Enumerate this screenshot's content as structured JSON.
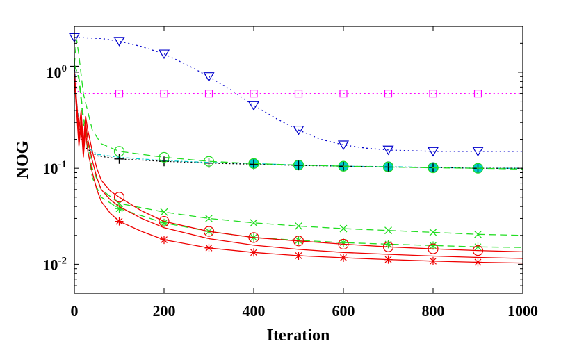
{
  "chart_data": {
    "type": "line",
    "title": "",
    "xlabel": "Iteration",
    "ylabel": "NOG",
    "xlim": [
      0,
      1000
    ],
    "ylim": [
      0.005,
      3
    ],
    "yscale": "log",
    "grid": false,
    "legend": "none",
    "xticks": [
      "0",
      "200",
      "400",
      "600",
      "800",
      "1000"
    ],
    "yticks": [
      {
        "value": 1,
        "base": "10",
        "exp": "0"
      },
      {
        "value": 0.1,
        "base": "10",
        "exp": "-1"
      },
      {
        "value": 0.01,
        "base": "10",
        "exp": "-2"
      }
    ],
    "series": [
      {
        "color": "#0000cc",
        "dash": "2,4",
        "marker": "triangle-down",
        "x": [
          0,
          60,
          100,
          150,
          200,
          250,
          300,
          350,
          400,
          450,
          500,
          550,
          600,
          650,
          700,
          750,
          800,
          850,
          900,
          950,
          1000
        ],
        "y": [
          2.3,
          2.25,
          2.1,
          1.85,
          1.55,
          1.2,
          0.9,
          0.65,
          0.45,
          0.33,
          0.25,
          0.2,
          0.175,
          0.162,
          0.155,
          0.152,
          0.15,
          0.15,
          0.15,
          0.15,
          0.15
        ],
        "marker_x": [
          0,
          100,
          200,
          300,
          400,
          500,
          600,
          700,
          800,
          900
        ]
      },
      {
        "color": "#ff00ff",
        "dash": "2,4",
        "marker": "square",
        "x": [
          0,
          5,
          10,
          100,
          1000
        ],
        "y": [
          1.15,
          0.7,
          0.6,
          0.6,
          0.6
        ],
        "marker_x": [
          100,
          200,
          300,
          400,
          500,
          600,
          700,
          800,
          900
        ]
      },
      {
        "color": "#00cccc",
        "dash": "6,3,2,3",
        "marker": "circle-filled",
        "x": [
          0,
          5,
          10,
          20,
          50,
          100,
          200,
          300,
          400,
          500,
          600,
          700,
          800,
          900,
          1000
        ],
        "y": [
          1.2,
          0.5,
          0.3,
          0.18,
          0.14,
          0.13,
          0.12,
          0.115,
          0.112,
          0.108,
          0.105,
          0.104,
          0.102,
          0.1,
          0.1
        ],
        "marker_x": [
          400,
          500,
          600,
          700,
          800,
          900
        ]
      },
      {
        "color": "#000000",
        "dash": "2,3",
        "marker": "plus",
        "x": [
          0,
          5,
          10,
          20,
          50,
          100,
          200,
          300,
          400,
          500,
          600,
          700,
          800,
          900,
          1000
        ],
        "y": [
          1.15,
          0.45,
          0.28,
          0.17,
          0.135,
          0.125,
          0.118,
          0.113,
          0.11,
          0.107,
          0.105,
          0.103,
          0.102,
          0.1,
          0.1
        ],
        "marker_x": [
          0,
          100,
          200,
          300,
          400,
          500,
          600,
          700,
          800,
          900
        ]
      },
      {
        "color": "#22dd22",
        "dash": "10,6",
        "marker": "circle",
        "x": [
          0,
          5,
          10,
          20,
          40,
          60,
          100,
          200,
          300,
          400,
          500,
          600,
          700,
          800,
          900,
          1000
        ],
        "y": [
          1.2,
          2.2,
          1.5,
          0.6,
          0.25,
          0.18,
          0.15,
          0.13,
          0.118,
          0.112,
          0.108,
          0.105,
          0.103,
          0.101,
          0.1,
          0.098
        ],
        "marker_x": [
          100,
          200,
          300,
          400,
          500,
          600,
          700,
          800,
          900
        ]
      },
      {
        "color": "#22dd22",
        "dash": "10,6",
        "marker": "x",
        "x": [
          0,
          10,
          20,
          40,
          60,
          100,
          200,
          300,
          400,
          500,
          600,
          700,
          800,
          900,
          1000
        ],
        "y": [
          1.2,
          0.9,
          0.35,
          0.1,
          0.06,
          0.043,
          0.035,
          0.03,
          0.027,
          0.025,
          0.0235,
          0.0225,
          0.0215,
          0.0205,
          0.02
        ],
        "marker_x": [
          100,
          200,
          300,
          400,
          500,
          600,
          700,
          800,
          900
        ]
      },
      {
        "color": "#22dd22",
        "dash": "10,6",
        "marker": "asterisk",
        "x": [
          0,
          10,
          20,
          40,
          60,
          100,
          200,
          300,
          400,
          500,
          600,
          700,
          800,
          900,
          1000
        ],
        "y": [
          1.2,
          0.85,
          0.3,
          0.08,
          0.05,
          0.038,
          0.027,
          0.022,
          0.019,
          0.0178,
          0.0168,
          0.0162,
          0.0157,
          0.0152,
          0.015
        ],
        "marker_x": [
          100,
          200,
          300,
          400,
          500,
          600,
          700,
          800,
          900
        ]
      },
      {
        "color": "#ee0000",
        "dash": "",
        "marker": "circle",
        "x": [
          0,
          10,
          15,
          20,
          25,
          30,
          40,
          50,
          60,
          80,
          100,
          150,
          200,
          300,
          400,
          500,
          600,
          700,
          800,
          900,
          1000
        ],
        "y": [
          1.0,
          0.25,
          0.4,
          0.18,
          0.35,
          0.25,
          0.15,
          0.1,
          0.075,
          0.058,
          0.05,
          0.036,
          0.028,
          0.022,
          0.019,
          0.0175,
          0.0162,
          0.0152,
          0.0145,
          0.0139,
          0.0135
        ],
        "marker_x": [
          100,
          200,
          300,
          400,
          500,
          600,
          700,
          800,
          900
        ]
      },
      {
        "color": "#ee0000",
        "dash": "",
        "marker": "none",
        "x": [
          0,
          10,
          15,
          20,
          25,
          30,
          40,
          50,
          60,
          80,
          100,
          150,
          200,
          300,
          400,
          500,
          600,
          700,
          800,
          900,
          1000
        ],
        "y": [
          0.9,
          0.2,
          0.32,
          0.15,
          0.3,
          0.2,
          0.12,
          0.08,
          0.06,
          0.047,
          0.04,
          0.03,
          0.024,
          0.0185,
          0.0158,
          0.0143,
          0.0133,
          0.0127,
          0.0122,
          0.0118,
          0.0115
        ],
        "marker_x": []
      },
      {
        "color": "#ee0000",
        "dash": "",
        "marker": "asterisk",
        "x": [
          0,
          10,
          15,
          20,
          25,
          30,
          40,
          50,
          60,
          80,
          100,
          150,
          200,
          300,
          400,
          500,
          600,
          700,
          800,
          900,
          1000
        ],
        "y": [
          0.85,
          0.17,
          0.28,
          0.13,
          0.25,
          0.15,
          0.09,
          0.06,
          0.045,
          0.034,
          0.028,
          0.022,
          0.018,
          0.0148,
          0.0133,
          0.0123,
          0.0117,
          0.0112,
          0.0108,
          0.0105,
          0.0103
        ],
        "marker_x": [
          100,
          200,
          300,
          400,
          500,
          600,
          700,
          800,
          900
        ]
      }
    ]
  }
}
